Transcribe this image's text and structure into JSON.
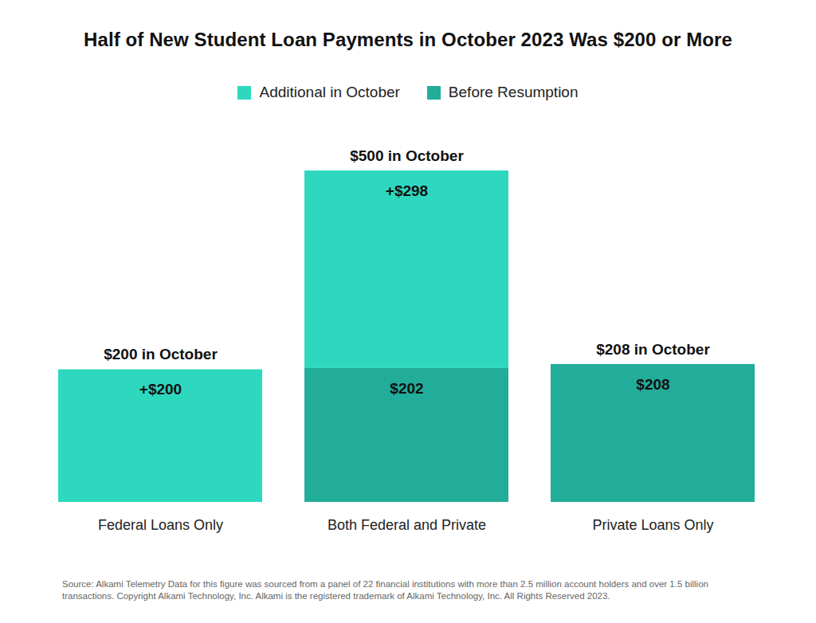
{
  "chart_data": {
    "type": "bar",
    "title": "Half of New Student Loan Payments in October 2023 Was $200 or More",
    "categories": [
      "Federal Loans Only",
      "Both Federal and Private",
      "Private Loans Only"
    ],
    "series": [
      {
        "name": "Additional in October",
        "color": "#2ed8bf",
        "values": [
          200,
          298,
          null
        ],
        "value_labels": [
          "+$200",
          "+$298",
          null
        ]
      },
      {
        "name": "Before Resumption",
        "color": "#21ad9a",
        "values": [
          null,
          202,
          208
        ],
        "value_labels": [
          null,
          "$202",
          "$208"
        ]
      }
    ],
    "totals": [
      200,
      500,
      208
    ],
    "total_labels": [
      "$200 in October",
      "$500 in October",
      "$208 in October"
    ],
    "stacked": true,
    "data_labels": true,
    "legend": "top",
    "grid": false,
    "tick_labels": "x",
    "ylim": [
      0,
      500
    ],
    "caption": "Source: Alkami Telemetry Data for this figure was sourced from a panel of 22 financial institutions with more than 2.5 million account holders and over 1.5 billion transactions. Copyright Alkami Technology, Inc. Alkami is the registered trademark of Alkami Technology, Inc. All Rights Reserved 2023."
  }
}
